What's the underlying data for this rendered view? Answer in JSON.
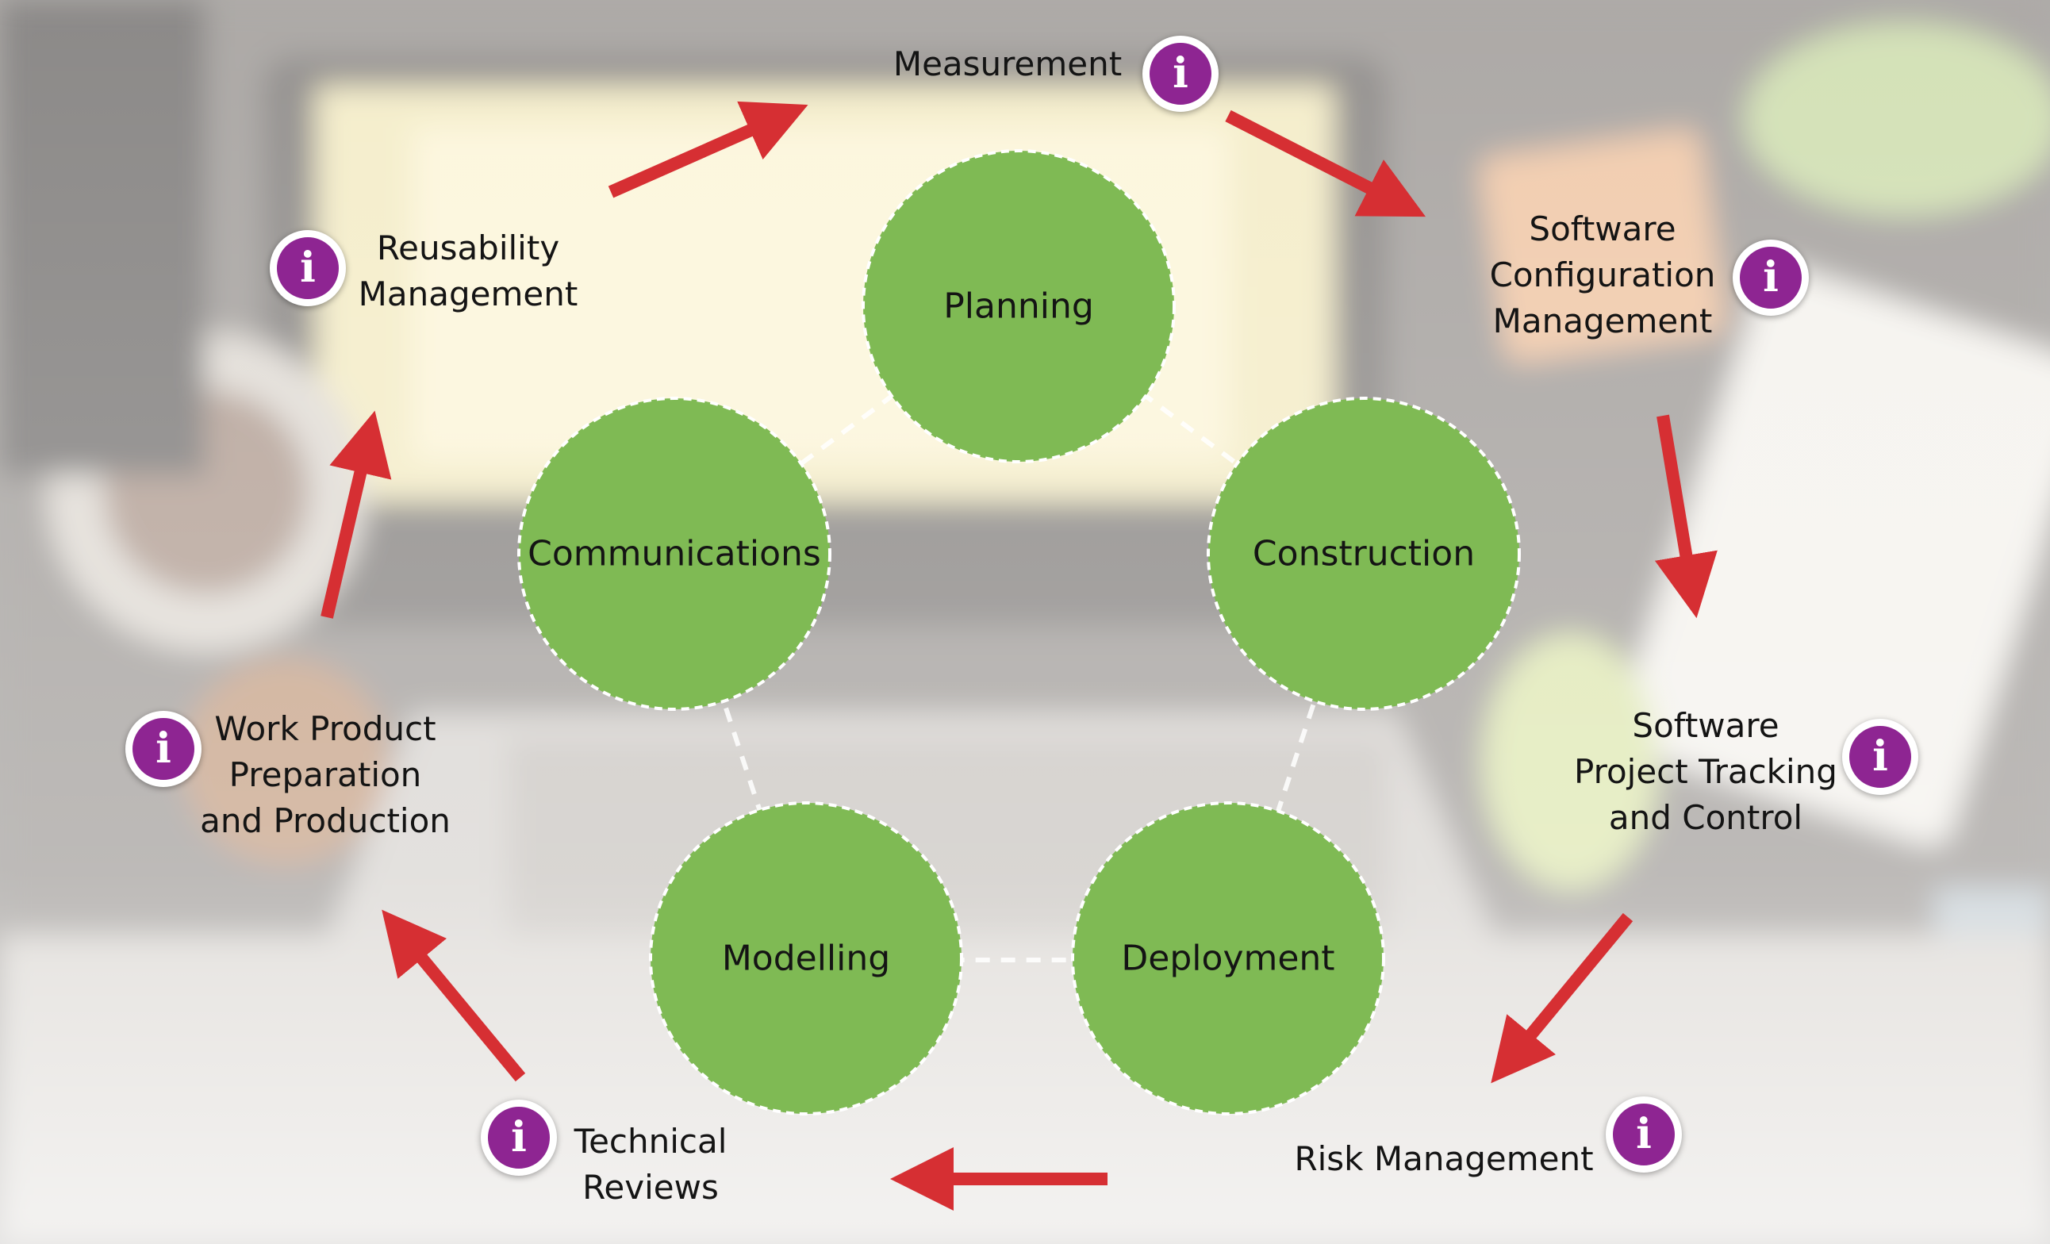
{
  "phases": [
    {
      "label": "Planning"
    },
    {
      "label": "Construction"
    },
    {
      "label": "Deployment"
    },
    {
      "label": "Modelling"
    },
    {
      "label": "Communications"
    }
  ],
  "activities": {
    "measurement": {
      "lines": [
        "Measurement"
      ]
    },
    "software_configuration_management": {
      "lines": [
        "Software",
        "Configuration",
        "Management"
      ]
    },
    "software_project_tracking": {
      "lines": [
        "Software",
        "Project Tracking",
        "and Control"
      ]
    },
    "risk_management": {
      "lines": [
        "Risk Management"
      ]
    },
    "technical_reviews": {
      "lines": [
        "Technical",
        "Reviews"
      ]
    },
    "work_product": {
      "lines": [
        "Work Product",
        "Preparation",
        "and Production"
      ]
    },
    "reusability_management": {
      "lines": [
        "Reusability",
        "Management"
      ]
    }
  },
  "info_icon": {
    "glyph": "i",
    "icon": "info-icon"
  },
  "colors": {
    "phase_fill": "#7fba54",
    "arrow": "#d62f33",
    "info_fill": "#8e2592",
    "text": "#141414"
  }
}
